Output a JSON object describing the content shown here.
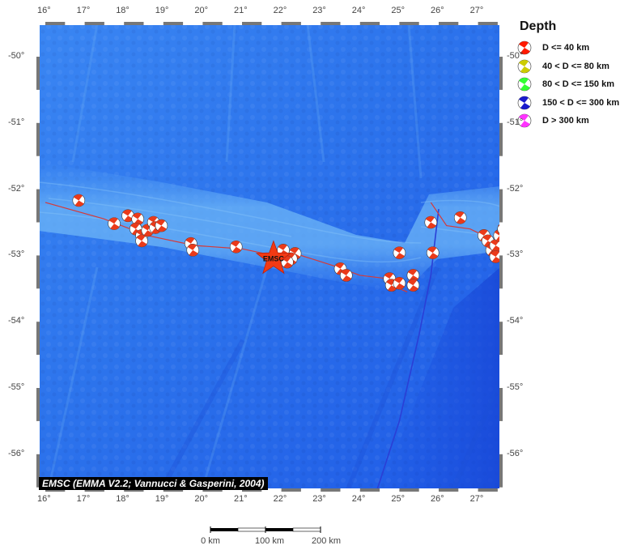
{
  "map": {
    "lon_range": [
      16,
      27.5
    ],
    "lat_range": [
      -56.6,
      -49.5
    ],
    "x_ticks": [
      "16°",
      "17°",
      "18°",
      "19°",
      "20°",
      "21°",
      "22°",
      "23°",
      "24°",
      "25°",
      "26°",
      "27°"
    ],
    "y_ticks": [
      "-50°",
      "-51°",
      "-52°",
      "-53°",
      "-54°",
      "-55°",
      "-56°"
    ],
    "colors": {
      "ocean_deep": "#1a55e6",
      "ocean_mid": "#2f7cf0",
      "ridge": "#6fb3f5",
      "plate_boundary": "#d43a3a",
      "fracture_zone": "#2a3fd6",
      "event_fill": "#ea3a1a"
    },
    "main_event": {
      "label": "EMSC",
      "lon": 21.8,
      "lat": -53.05
    },
    "plate_boundary_red": [
      [
        16.0,
        -52.2
      ],
      [
        17.5,
        -52.45
      ],
      [
        18.6,
        -52.7
      ],
      [
        19.8,
        -52.85
      ],
      [
        21.0,
        -52.9
      ],
      [
        21.8,
        -53.0
      ],
      [
        22.5,
        -53.0
      ],
      [
        23.3,
        -53.15
      ],
      [
        24.0,
        -53.3
      ],
      [
        24.7,
        -53.35
      ],
      [
        25.0,
        -53.5
      ],
      [
        25.2,
        -53.55
      ]
    ],
    "plate_boundary_red_east": [
      [
        25.8,
        -52.2
      ],
      [
        26.2,
        -52.55
      ],
      [
        26.8,
        -52.6
      ],
      [
        27.5,
        -52.8
      ]
    ],
    "fracture_zone_blue": [
      [
        24.4,
        -56.6
      ],
      [
        25.0,
        -55.5
      ],
      [
        25.5,
        -54.2
      ],
      [
        25.8,
        -53.3
      ],
      [
        26.0,
        -52.3
      ]
    ],
    "events": [
      {
        "lon": 16.85,
        "lat": -52.17
      },
      {
        "lon": 17.75,
        "lat": -52.52
      },
      {
        "lon": 18.1,
        "lat": -52.4
      },
      {
        "lon": 18.35,
        "lat": -52.45
      },
      {
        "lon": 18.3,
        "lat": -52.6
      },
      {
        "lon": 18.45,
        "lat": -52.7
      },
      {
        "lon": 18.45,
        "lat": -52.78
      },
      {
        "lon": 18.6,
        "lat": -52.62
      },
      {
        "lon": 18.75,
        "lat": -52.5
      },
      {
        "lon": 18.8,
        "lat": -52.58
      },
      {
        "lon": 18.95,
        "lat": -52.55
      },
      {
        "lon": 19.7,
        "lat": -52.82
      },
      {
        "lon": 19.75,
        "lat": -52.92
      },
      {
        "lon": 20.85,
        "lat": -52.87
      },
      {
        "lon": 22.05,
        "lat": -52.92
      },
      {
        "lon": 22.35,
        "lat": -52.97
      },
      {
        "lon": 22.25,
        "lat": -53.05
      },
      {
        "lon": 22.15,
        "lat": -53.1
      },
      {
        "lon": 23.5,
        "lat": -53.2
      },
      {
        "lon": 23.65,
        "lat": -53.3
      },
      {
        "lon": 24.75,
        "lat": -53.35
      },
      {
        "lon": 24.8,
        "lat": -53.45
      },
      {
        "lon": 25.0,
        "lat": -53.42
      },
      {
        "lon": 25.0,
        "lat": -52.96
      },
      {
        "lon": 25.35,
        "lat": -53.3
      },
      {
        "lon": 25.35,
        "lat": -53.45
      },
      {
        "lon": 25.8,
        "lat": -52.5
      },
      {
        "lon": 25.85,
        "lat": -52.96
      },
      {
        "lon": 26.55,
        "lat": -52.43
      },
      {
        "lon": 27.15,
        "lat": -52.7
      },
      {
        "lon": 27.25,
        "lat": -52.78
      },
      {
        "lon": 27.35,
        "lat": -52.92
      },
      {
        "lon": 27.45,
        "lat": -52.85
      },
      {
        "lon": 27.55,
        "lat": -52.7
      },
      {
        "lon": 27.65,
        "lat": -52.6
      },
      {
        "lon": 27.45,
        "lat": -53.02
      }
    ]
  },
  "legend": {
    "title": "Depth",
    "items": [
      {
        "label": "D <= 40 km",
        "color": "#ff1a00"
      },
      {
        "label": "40 < D <= 80 km",
        "color": "#cccc00"
      },
      {
        "label": "80 < D <= 150 km",
        "color": "#33ff33"
      },
      {
        "label": "150 < D <= 300 km",
        "color": "#1a1acc"
      },
      {
        "label": "D > 300 km",
        "color": "#ff33ff"
      }
    ]
  },
  "credit": "EMSC (EMMA V2.2; Vannucci & Gasperini, 2004)",
  "scale_bar": {
    "labels": [
      "0 km",
      "100 km",
      "200 km"
    ]
  }
}
